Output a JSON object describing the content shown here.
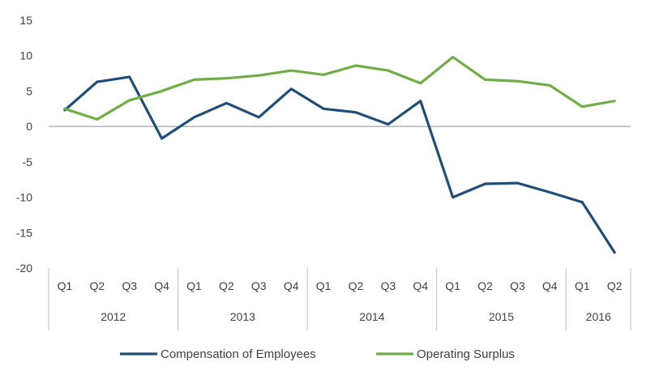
{
  "chart_data": {
    "type": "line",
    "title": "",
    "xlabel": "",
    "ylabel": "",
    "ylim": [
      -20,
      15
    ],
    "yticks": [
      15,
      10,
      5,
      0,
      -5,
      -10,
      -15,
      -20
    ],
    "grid": false,
    "legend_position": "bottom",
    "categories": [
      "Q1",
      "Q2",
      "Q3",
      "Q4",
      "Q1",
      "Q2",
      "Q3",
      "Q4",
      "Q1",
      "Q2",
      "Q3",
      "Q4",
      "Q1",
      "Q2",
      "Q3",
      "Q4",
      "Q1",
      "Q2"
    ],
    "groups": [
      {
        "label": "2012",
        "count": 4
      },
      {
        "label": "2013",
        "count": 4
      },
      {
        "label": "2014",
        "count": 4
      },
      {
        "label": "2015",
        "count": 4
      },
      {
        "label": "2016",
        "count": 2
      }
    ],
    "series": [
      {
        "name": "Compensation of Employees",
        "color": "#1f4e79",
        "values": [
          2.3,
          6.3,
          7.0,
          -1.7,
          1.3,
          3.3,
          1.3,
          5.3,
          2.5,
          2.0,
          0.3,
          3.6,
          -10.0,
          -8.1,
          -8.0,
          -9.3,
          -10.7,
          -17.8
        ]
      },
      {
        "name": "Operating Surplus",
        "color": "#70ad47",
        "values": [
          2.5,
          1.0,
          3.7,
          5.0,
          6.6,
          6.8,
          7.2,
          7.9,
          7.3,
          8.6,
          7.9,
          6.1,
          9.8,
          6.6,
          6.4,
          5.8,
          2.8,
          3.6
        ]
      }
    ]
  }
}
